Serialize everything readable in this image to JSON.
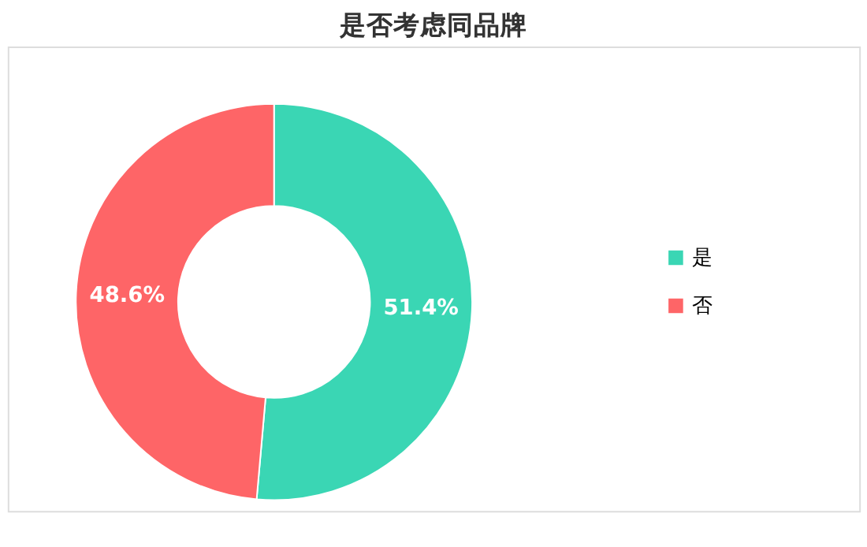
{
  "chart_data": {
    "type": "donut",
    "title": "是否考虑同品牌",
    "categories": [
      "是",
      "否"
    ],
    "values": [
      51.4,
      48.6
    ],
    "colors": [
      "#3ad6b4",
      "#fe6567"
    ],
    "value_labels": [
      "51.4%",
      "48.6%"
    ],
    "legend": "right"
  }
}
